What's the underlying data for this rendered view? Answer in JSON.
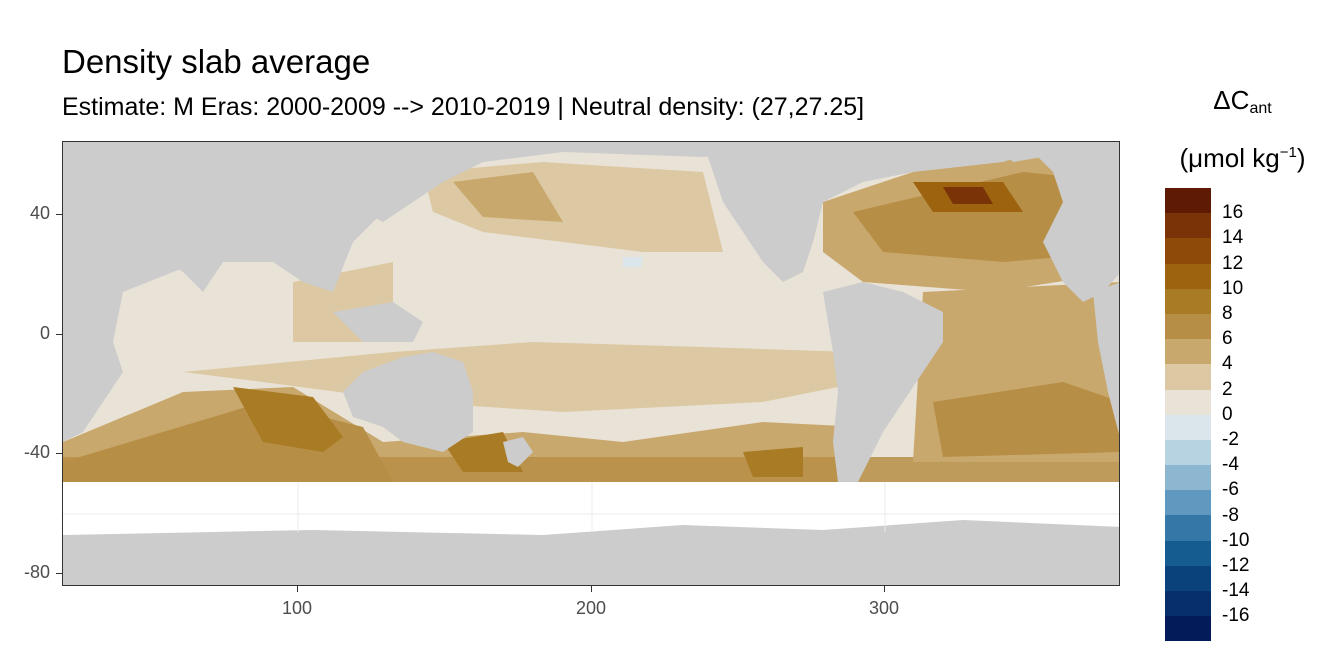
{
  "title": "Density slab average",
  "subtitle": "Estimate: M Eras: 2000-2009 --> 2010-2019 | Neutral density: (27,27.25]",
  "legend": {
    "title_main": "ΔC",
    "title_sub": "ant",
    "unit_prefix": "(μmol kg",
    "unit_sup": "−1",
    "unit_suffix": ")",
    "labels": [
      "16",
      "14",
      "12",
      "10",
      "8",
      "6",
      "4",
      "2",
      "0",
      "-2",
      "-4",
      "-6",
      "-8",
      "-10",
      "-12",
      "-14",
      "-16"
    ],
    "colors": [
      "#5e1a02",
      "#7a3307",
      "#8d4a08",
      "#9d630f",
      "#a97b24",
      "#b78e45",
      "#c9a86e",
      "#dcc9a3",
      "#e9e3d7",
      "#dbe6ec",
      "#b7d2e1",
      "#8db6d0",
      "#5f99bf",
      "#3577a6",
      "#155c90",
      "#0a437c",
      "#072f6b",
      "#041b59"
    ]
  },
  "axes": {
    "x_ticks": [
      "100",
      "200",
      "300"
    ],
    "y_ticks": [
      "40",
      "0",
      "-40",
      "-80"
    ]
  },
  "colors": {
    "land": "#cccccc",
    "no_data": "#ffffff",
    "panel_border": "#333333"
  }
}
